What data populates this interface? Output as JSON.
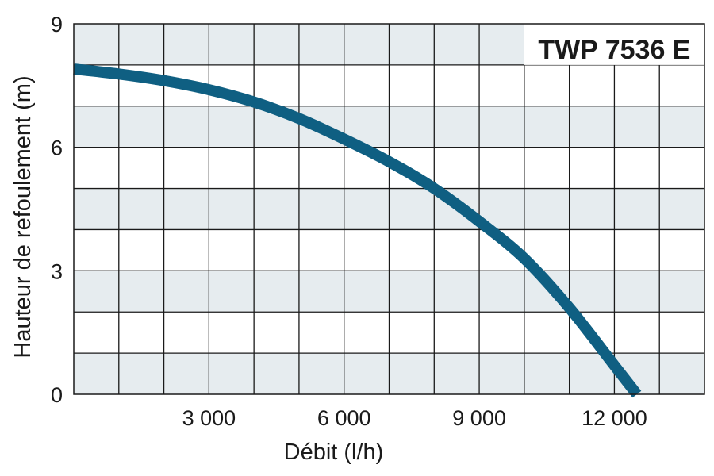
{
  "chart_data": {
    "type": "line",
    "title": "TWP 7536 E",
    "xlabel": "Débit (l/h)",
    "ylabel": "Hauteur de refoulement (m)",
    "xlim": [
      0,
      14000
    ],
    "ylim": [
      0,
      9
    ],
    "x_ticks": [
      3000,
      6000,
      9000,
      12000
    ],
    "x_tick_labels": [
      "3 000",
      "6 000",
      "9 000",
      "12 000"
    ],
    "y_ticks": [
      0,
      3,
      6,
      9
    ],
    "y_tick_labels": [
      "0",
      "3",
      "6",
      "9"
    ],
    "x_grid_step": 1000,
    "y_grid_step": 1,
    "grid": true,
    "band_color": "#e6ecef",
    "grid_color": "#1a1a1a",
    "series": [
      {
        "color": "#0f5f82",
        "x": [
          0,
          1000,
          2000,
          3000,
          4000,
          5000,
          6000,
          7000,
          8000,
          9000,
          10000,
          11000,
          12000,
          12500
        ],
        "y": [
          7.9,
          7.78,
          7.62,
          7.4,
          7.1,
          6.7,
          6.2,
          5.65,
          5.0,
          4.2,
          3.3,
          2.1,
          0.7,
          0
        ]
      }
    ]
  }
}
